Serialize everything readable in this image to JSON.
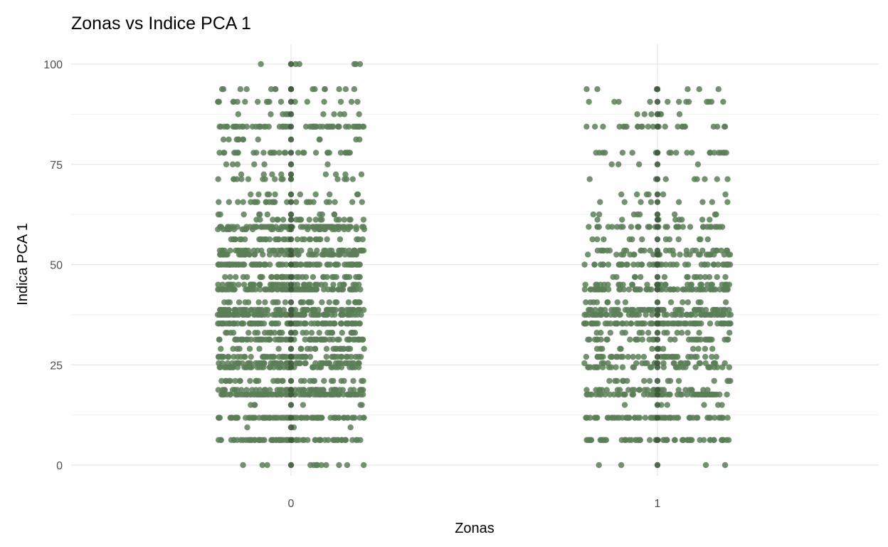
{
  "chart_data": {
    "type": "scatter",
    "title": "Zonas vs Indice PCA 1",
    "xlabel": "Zonas",
    "ylabel": "Indica PCA 1",
    "categories": [
      "0",
      "1"
    ],
    "x_ticks": [
      "0",
      "1"
    ],
    "y_ticks": [
      "0",
      "25",
      "50",
      "75",
      "100"
    ],
    "ylim": [
      0,
      100
    ],
    "jitter_width": 0.2,
    "grid": true,
    "point_color": "#5b7f57",
    "series": [
      {
        "name": "0",
        "levels": [
          0,
          6.25,
          9.4,
          11.8,
          15,
          17.6,
          18.75,
          21,
          24.4,
          25.4,
          27,
          29,
          31.3,
          33,
          35.3,
          37.5,
          38.7,
          40.6,
          43.8,
          45,
          46.9,
          50,
          52.5,
          53.5,
          56.3,
          58.8,
          59.4,
          61.2,
          62.5,
          65.6,
          67.5,
          71.3,
          72.5,
          75,
          77.9,
          81.2,
          84.4,
          87.5,
          90.6,
          93.75,
          100
        ],
        "counts": [
          12,
          70,
          3,
          90,
          6,
          95,
          60,
          30,
          50,
          60,
          55,
          25,
          70,
          30,
          90,
          95,
          70,
          30,
          90,
          45,
          40,
          85,
          60,
          50,
          35,
          30,
          70,
          20,
          10,
          25,
          10,
          15,
          8,
          6,
          30,
          12,
          60,
          10,
          18,
          15,
          6
        ]
      },
      {
        "name": "1",
        "levels": [
          0,
          6.25,
          11.8,
          15,
          17.6,
          18.75,
          21,
          24.4,
          25.4,
          27,
          29,
          31.3,
          33,
          35.3,
          37.5,
          38.7,
          40.6,
          43.8,
          45,
          46.9,
          50,
          52.5,
          53.5,
          56.3,
          59.4,
          61.2,
          62.5,
          65.6,
          67.5,
          71.3,
          75,
          77.9,
          84.4,
          87.5,
          90.6,
          93.75
        ],
        "counts": [
          4,
          55,
          60,
          6,
          60,
          30,
          15,
          30,
          25,
          35,
          12,
          35,
          15,
          75,
          60,
          50,
          15,
          65,
          30,
          15,
          50,
          25,
          25,
          12,
          35,
          8,
          8,
          8,
          6,
          8,
          4,
          22,
          24,
          6,
          12,
          6
        ]
      }
    ]
  }
}
